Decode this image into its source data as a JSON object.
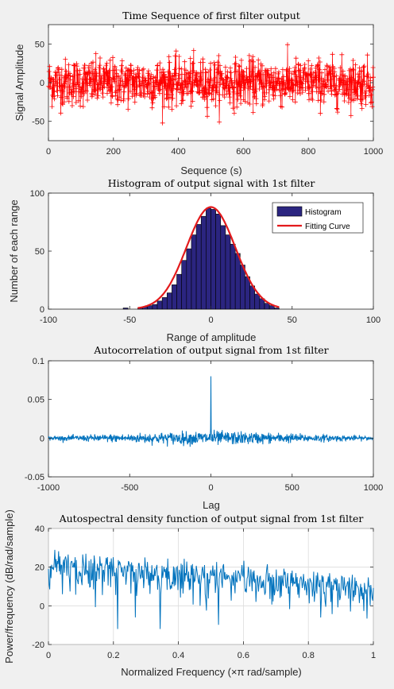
{
  "chart_data": [
    {
      "type": "scatter",
      "title": "Time Sequence of first filter output",
      "xlabel": "Sequence (s)",
      "ylabel": "Signal Amplitude",
      "xlim": [
        0,
        1000
      ],
      "ylim": [
        -75,
        75
      ],
      "xticks": [
        0,
        200,
        400,
        600,
        800,
        1000
      ],
      "yticks": [
        -50,
        0,
        50
      ],
      "marker": "plus",
      "line_style": "solid",
      "color": "#ff0000",
      "grid": false,
      "samples": 1000,
      "amplitude_sd": 15
    },
    {
      "type": "bar",
      "title": "Histogram of output signal with 1st filter",
      "xlabel": "Range of amplitude",
      "ylabel": "Number of each range",
      "xlim": [
        -100,
        100
      ],
      "ylim": [
        0,
        100
      ],
      "xticks": [
        -100,
        -50,
        0,
        50,
        100
      ],
      "yticks": [
        0,
        50,
        100
      ],
      "grid": false,
      "legend_position": "top-right",
      "bin_width": 3,
      "bin_starts": [
        -54,
        -51,
        -48,
        -45,
        -42,
        -39,
        -36,
        -33,
        -30,
        -27,
        -24,
        -21,
        -18,
        -15,
        -12,
        -9,
        -6,
        -3,
        0,
        3,
        6,
        9,
        12,
        15,
        18,
        21,
        24,
        27,
        30,
        33,
        36,
        39
      ],
      "values": [
        1,
        0,
        0,
        1,
        2,
        3,
        4,
        7,
        10,
        14,
        21,
        30,
        42,
        52,
        64,
        73,
        80,
        87,
        86,
        82,
        72,
        64,
        56,
        48,
        38,
        28,
        20,
        13,
        9,
        5,
        3,
        1
      ],
      "fit_curve": {
        "peak": 88,
        "mean": 0,
        "sd": 15
      },
      "series": [
        {
          "name": "Histogram",
          "color": "#2b2580"
        },
        {
          "name": "Fitting Curve",
          "color": "#e31a1c"
        }
      ]
    },
    {
      "type": "line",
      "title": "Autocorrelation of output signal from 1st filter",
      "xlabel": "Lag",
      "ylabel": "",
      "xlim": [
        -1000,
        1000
      ],
      "ylim": [
        -0.05,
        0.1
      ],
      "xticks": [
        -1000,
        -500,
        0,
        500,
        1000
      ],
      "yticks": [
        -0.05,
        0,
        0.05,
        0.1
      ],
      "peak": {
        "x": 0,
        "y": 0.08
      },
      "color": "#0072bd",
      "grid": false
    },
    {
      "type": "line",
      "title": "Autospectral density function of output signal from 1st filter",
      "xlabel": "Normalized Frequency  (×π rad/sample)",
      "ylabel": "Power/frequency (dB/rad/sample)",
      "xlim": [
        0,
        1
      ],
      "ylim": [
        -20,
        40
      ],
      "xticks": [
        0,
        0.2,
        0.4,
        0.6,
        0.8,
        1
      ],
      "yticks": [
        -20,
        0,
        20,
        40
      ],
      "trend_db": [
        22,
        10
      ],
      "color": "#0072bd",
      "grid": true
    }
  ]
}
